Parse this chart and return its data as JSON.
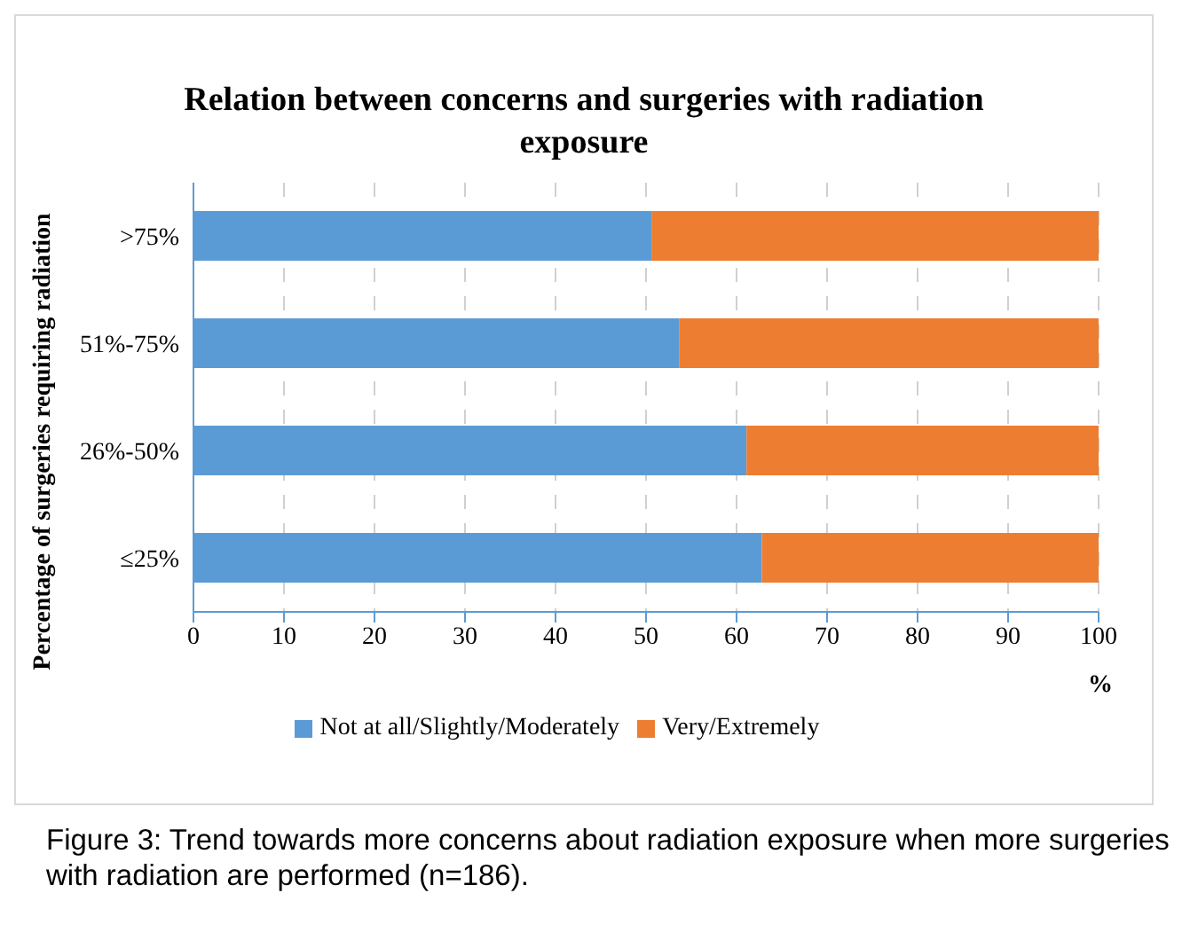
{
  "chart_data": {
    "type": "bar",
    "orientation": "horizontal",
    "stacked": true,
    "title": "Relation between concerns and surgeries with radiation exposure",
    "ylabel": "Percentage of surgeries requiring radiation",
    "xlabel": "%",
    "categories": [
      ">75%",
      "51%-75%",
      "26%-50%",
      "≤25%"
    ],
    "series": [
      {
        "name": "Not at all/Slightly/Moderately",
        "color": "#5b9bd5",
        "values": [
          50.6,
          53.7,
          61.1,
          62.8
        ]
      },
      {
        "name": "Very/Extremely",
        "color": "#ed7d31",
        "values": [
          49.4,
          46.3,
          38.9,
          37.2
        ]
      }
    ],
    "xlim": [
      0,
      100
    ],
    "xticks": [
      0,
      10,
      20,
      30,
      40,
      50,
      60,
      70,
      80,
      90,
      100
    ],
    "grid": "x",
    "legend": "bottom",
    "annotations": [
      "Figure 3: Trend towards more concerns about radiation exposure when more surgeries with radiation are performed (n=186)."
    ]
  }
}
